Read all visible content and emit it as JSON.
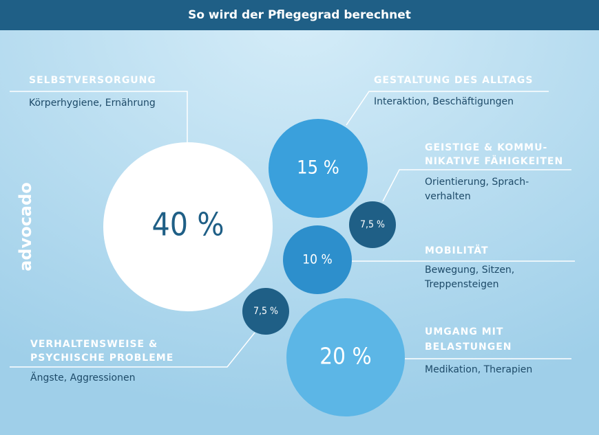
{
  "header": {
    "title": "So wird der Pflegegrad berechnet"
  },
  "brand": "advocado",
  "nodes": [
    {
      "label": "40 %",
      "title": [
        "SELBSTVERSORGUNG"
      ],
      "description": [
        "Körperhygiene, Ernährung"
      ]
    },
    {
      "label": "15 %",
      "title": [
        "GESTALTUNG DES ALLTAGS"
      ],
      "description": [
        "Interaktion, Beschäftigungen"
      ]
    },
    {
      "label": "7,5 %",
      "title": [
        "GEISTIGE & KOMMU-",
        "NIKATIVE FÄHIGKEITEN"
      ],
      "description": [
        "Orientierung, Sprach-",
        "verhalten"
      ]
    },
    {
      "label": "10 %",
      "title": [
        "MOBILITÄT"
      ],
      "description": [
        "Bewegung, Sitzen,",
        "Treppensteigen"
      ]
    },
    {
      "label": "20 %",
      "title": [
        "UMGANG MIT",
        "BELASTUNGEN"
      ],
      "description": [
        "Medikation, Therapien"
      ]
    },
    {
      "label": "7,5 %",
      "title": [
        "VERHALTENSWEISE &",
        "PSYCHISCHE PROBLEME"
      ],
      "description": [
        "Ängste, Aggressionen"
      ]
    }
  ]
}
